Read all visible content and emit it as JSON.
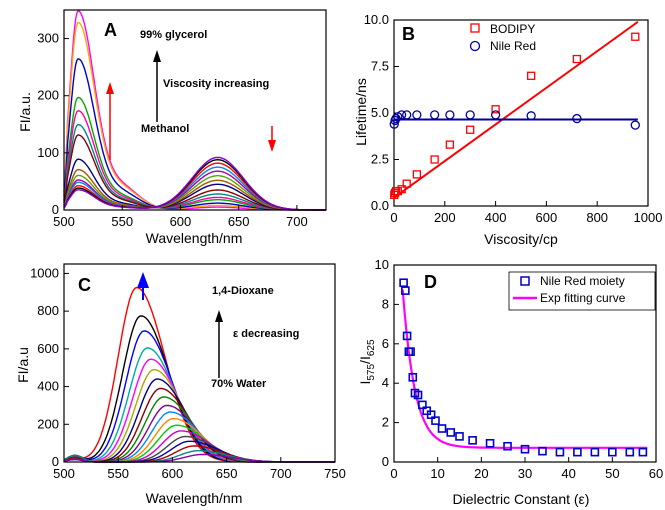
{
  "chart_data": [
    {
      "panel": "A",
      "type": "line",
      "xlabel": "Wavelength/nm",
      "ylabel": "FI/a.u.",
      "xlim": [
        500,
        725
      ],
      "ylim": [
        0,
        350
      ],
      "xticks": [
        "500",
        "550",
        "600",
        "650",
        "700"
      ],
      "yticks": [
        "0",
        "100",
        "200",
        "300"
      ],
      "annotations": [
        "99% glycerol",
        "Viscosity increasing",
        "Methanol"
      ],
      "peak1_x": 512,
      "peak2_x": 632,
      "curves": [
        {
          "color": "#ff00ff",
          "p1": 345,
          "p2": 5
        },
        {
          "color": "#ffaa00",
          "p1": 325,
          "p2": 8
        },
        {
          "color": "#0000cc",
          "p1": 262,
          "p2": 12
        },
        {
          "color": "#00aa00",
          "p1": 195,
          "p2": 18
        },
        {
          "color": "#ff00aa",
          "p1": 172,
          "p2": 22
        },
        {
          "color": "#008888",
          "p1": 148,
          "p2": 28
        },
        {
          "color": "#880000",
          "p1": 130,
          "p2": 35
        },
        {
          "color": "#000088",
          "p1": 88,
          "p2": 45
        },
        {
          "color": "#aa5500",
          "p1": 70,
          "p2": 52
        },
        {
          "color": "#55aa00",
          "p1": 60,
          "p2": 60
        },
        {
          "color": "#aa00aa",
          "p1": 52,
          "p2": 68
        },
        {
          "color": "#0088ff",
          "p1": 48,
          "p2": 75
        },
        {
          "color": "#ff0000",
          "p1": 42,
          "p2": 82
        },
        {
          "color": "#000000",
          "p1": 38,
          "p2": 88
        },
        {
          "color": "#8800cc",
          "p1": 35,
          "p2": 92
        }
      ]
    },
    {
      "panel": "B",
      "type": "scatter",
      "xlabel": "Viscosity/cp",
      "ylabel": "Lifetime/ns",
      "xlim": [
        0,
        1000
      ],
      "ylim": [
        0,
        10
      ],
      "xticks": [
        "0",
        "200",
        "400",
        "600",
        "800",
        "1000"
      ],
      "yticks": [
        "0.0",
        "2.5",
        "5.0",
        "7.5",
        "10.0"
      ],
      "legend_position": "top-right",
      "series": [
        {
          "name": "BODIPY",
          "color": "#ff0000",
          "marker": "square",
          "x": [
            1,
            4,
            8,
            15,
            30,
            50,
            90,
            160,
            220,
            300,
            400,
            540,
            720,
            950
          ],
          "y": [
            0.6,
            0.7,
            0.8,
            0.8,
            0.9,
            1.2,
            1.7,
            2.5,
            3.3,
            4.1,
            5.2,
            7.0,
            7.9,
            9.1
          ],
          "fit": {
            "x": [
              0,
              960
            ],
            "y": [
              0.45,
              9.9
            ]
          }
        },
        {
          "name": "Nile Red",
          "color": "#000099",
          "marker": "circle",
          "x": [
            1,
            4,
            8,
            15,
            30,
            50,
            90,
            160,
            220,
            300,
            400,
            540,
            720,
            950
          ],
          "y": [
            4.4,
            4.6,
            4.7,
            4.8,
            4.9,
            4.9,
            4.9,
            4.9,
            4.9,
            4.9,
            4.9,
            4.85,
            4.7,
            4.35
          ],
          "fit": {
            "x": [
              0,
              960
            ],
            "y": [
              4.65,
              4.65
            ]
          }
        }
      ]
    },
    {
      "panel": "C",
      "type": "line",
      "xlabel": "Wavelength/nm",
      "ylabel": "FI/a.u",
      "xlim": [
        500,
        750
      ],
      "ylim": [
        0,
        1050
      ],
      "xticks": [
        "500",
        "550",
        "600",
        "650",
        "700",
        "750"
      ],
      "yticks": [
        "0",
        "200",
        "400",
        "600",
        "800",
        "1000"
      ],
      "annotations": [
        "1,4-Dioxane",
        "ε decreasing",
        "70% Water"
      ],
      "curves": [
        {
          "color": "#ff0000",
          "peak": 567,
          "amp": 925
        },
        {
          "color": "#000000",
          "peak": 571,
          "amp": 775
        },
        {
          "color": "#0000ff",
          "peak": 574,
          "amp": 695
        },
        {
          "color": "#00aaaa",
          "peak": 577,
          "amp": 605
        },
        {
          "color": "#ff00ff",
          "peak": 580,
          "amp": 545
        },
        {
          "color": "#aaaa00",
          "peak": 583,
          "amp": 490
        },
        {
          "color": "#000088",
          "peak": 586,
          "amp": 440
        },
        {
          "color": "#880000",
          "peak": 589,
          "amp": 390
        },
        {
          "color": "#008800",
          "peak": 592,
          "amp": 345
        },
        {
          "color": "#880088",
          "peak": 595,
          "amp": 300
        },
        {
          "color": "#0088ff",
          "peak": 598,
          "amp": 265
        },
        {
          "color": "#ff8800",
          "peak": 601,
          "amp": 230
        },
        {
          "color": "#00cc00",
          "peak": 604,
          "amp": 195
        },
        {
          "color": "#cc00cc",
          "peak": 608,
          "amp": 165
        },
        {
          "color": "#444444",
          "peak": 612,
          "amp": 135
        },
        {
          "color": "#0000aa",
          "peak": 616,
          "amp": 110
        },
        {
          "color": "#aa0000",
          "peak": 620,
          "amp": 85
        },
        {
          "color": "#008888",
          "peak": 624,
          "amp": 60
        },
        {
          "color": "#8800aa",
          "peak": 628,
          "amp": 40
        }
      ]
    },
    {
      "panel": "D",
      "type": "scatter",
      "xlabel": "Dielectric Constant (ε)",
      "ylabel": "I575/I625",
      "ylabel_main": "I",
      "ylabel_sub1": "575",
      "ylabel_mid": "/I",
      "ylabel_sub2": "625",
      "xlim": [
        0,
        60
      ],
      "ylim": [
        0,
        10
      ],
      "xticks": [
        "0",
        "10",
        "20",
        "30",
        "40",
        "50",
        "60"
      ],
      "yticks": [
        "0",
        "2",
        "4",
        "6",
        "8",
        "10"
      ],
      "legend_position": "top-right",
      "series": [
        {
          "name": "Nile Red moiety",
          "color": "#0000cc",
          "marker": "square",
          "x": [
            2.2,
            2.6,
            3.0,
            3.4,
            3.8,
            4.3,
            4.8,
            5.5,
            6.5,
            7.5,
            8.5,
            9.5,
            11,
            13,
            15,
            18,
            22,
            26,
            30,
            34,
            38,
            42,
            46,
            50,
            54,
            57
          ],
          "y": [
            9.1,
            8.7,
            6.4,
            5.6,
            5.6,
            4.3,
            3.5,
            3.4,
            2.9,
            2.6,
            2.4,
            2.1,
            1.7,
            1.5,
            1.3,
            1.1,
            0.95,
            0.8,
            0.65,
            0.55,
            0.5,
            0.5,
            0.5,
            0.5,
            0.5,
            0.5
          ]
        },
        {
          "name": "Exp fitting curve",
          "color": "#ff00ff",
          "marker": "line",
          "fit": {
            "a": 16.5,
            "k": 0.36,
            "c": 0.72,
            "x0": 2.0,
            "x1": 58
          }
        }
      ]
    }
  ]
}
